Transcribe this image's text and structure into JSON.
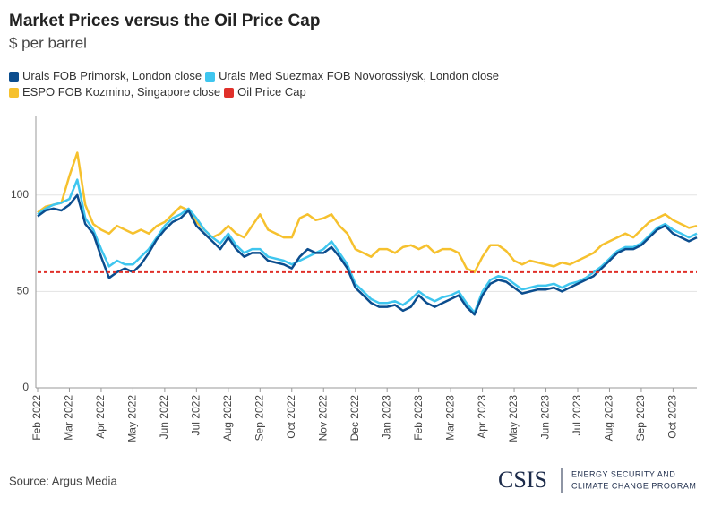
{
  "chart_data": {
    "type": "line",
    "title": "Market Prices versus the Oil Price Cap",
    "subtitle": "$ per barrel",
    "source": "Source: Argus Media",
    "logo": {
      "name": "CSIS",
      "lines": [
        "ENERGY SECURITY AND",
        "CLIMATE CHANGE PROGRAM"
      ]
    },
    "categories": [
      "Feb 2022",
      null,
      null,
      null,
      "Mar 2022",
      null,
      null,
      null,
      "Apr 2022",
      null,
      null,
      null,
      "May 2022",
      null,
      null,
      null,
      "Jun 2022",
      null,
      null,
      null,
      "Jul 2022",
      null,
      null,
      null,
      "Aug 2022",
      null,
      null,
      null,
      "Sep 2022",
      null,
      null,
      null,
      "Oct 2022",
      null,
      null,
      null,
      "Nov 2022",
      null,
      null,
      null,
      "Dec 2022",
      null,
      null,
      null,
      "Jan 2023",
      null,
      null,
      null,
      "Feb 2023",
      null,
      null,
      null,
      "Mar 2023",
      null,
      null,
      null,
      "Apr 2023",
      null,
      null,
      null,
      "May 2023",
      null,
      null,
      null,
      "Jun 2023",
      null,
      null,
      null,
      "Jul 2023",
      null,
      null,
      null,
      "Aug 2023",
      null,
      null,
      null,
      "Sep 2023",
      null,
      null,
      null,
      "Oct 2023",
      null,
      null,
      null
    ],
    "series": [
      {
        "name": "ESPO FOB Kozmino, Singapore close",
        "color": "#f6c12e",
        "values": [
          91,
          94,
          95,
          96,
          110,
          122,
          95,
          85,
          82,
          80,
          84,
          82,
          80,
          82,
          80,
          84,
          86,
          90,
          94,
          92,
          86,
          82,
          78,
          80,
          84,
          80,
          78,
          84,
          90,
          82,
          80,
          78,
          78,
          88,
          90,
          87,
          88,
          90,
          84,
          80,
          72,
          70,
          68,
          72,
          72,
          70,
          73,
          74,
          72,
          74,
          70,
          72,
          72,
          70,
          62,
          60,
          68,
          74,
          74,
          71,
          66,
          64,
          66,
          65,
          64,
          63,
          65,
          64,
          66,
          68,
          70,
          74,
          76,
          78,
          80,
          78,
          82,
          86,
          88,
          90,
          87,
          85,
          83,
          84
        ]
      },
      {
        "name": "Urals Med Suezmax FOB Novorossiysk, London close",
        "color": "#3fc6ef",
        "values": [
          90,
          93,
          95,
          96,
          98,
          108,
          88,
          82,
          72,
          63,
          66,
          64,
          64,
          68,
          72,
          78,
          84,
          88,
          90,
          93,
          88,
          82,
          78,
          75,
          80,
          74,
          70,
          72,
          72,
          68,
          67,
          66,
          64,
          66,
          68,
          70,
          72,
          76,
          70,
          64,
          54,
          50,
          46,
          44,
          44,
          45,
          43,
          46,
          50,
          47,
          45,
          47,
          48,
          50,
          44,
          39,
          50,
          56,
          58,
          57,
          54,
          51,
          52,
          53,
          53,
          54,
          52,
          54,
          55,
          57,
          60,
          63,
          67,
          71,
          73,
          73,
          75,
          79,
          83,
          85,
          82,
          80,
          78,
          80
        ]
      },
      {
        "name": "Urals FOB Primorsk, London close",
        "color": "#0b4d8e",
        "values": [
          89,
          92,
          93,
          92,
          95,
          100,
          85,
          80,
          68,
          57,
          60,
          62,
          60,
          64,
          70,
          77,
          82,
          86,
          88,
          92,
          84,
          80,
          76,
          72,
          78,
          72,
          68,
          70,
          70,
          66,
          65,
          64,
          62,
          68,
          72,
          70,
          70,
          73,
          68,
          62,
          52,
          48,
          44,
          42,
          42,
          43,
          40,
          42,
          48,
          44,
          42,
          44,
          46,
          48,
          42,
          38,
          48,
          54,
          56,
          55,
          52,
          49,
          50,
          51,
          51,
          52,
          50,
          52,
          54,
          56,
          58,
          62,
          66,
          70,
          72,
          72,
          74,
          78,
          82,
          84,
          80,
          78,
          76,
          78
        ]
      }
    ],
    "price_cap": {
      "name": "Oil Price Cap",
      "value": 60,
      "color": "#e0302a"
    },
    "legend_order": [
      2,
      1,
      0
    ],
    "ylim": [
      0,
      125
    ],
    "yticks": [
      0,
      50,
      100
    ],
    "grid": true
  }
}
